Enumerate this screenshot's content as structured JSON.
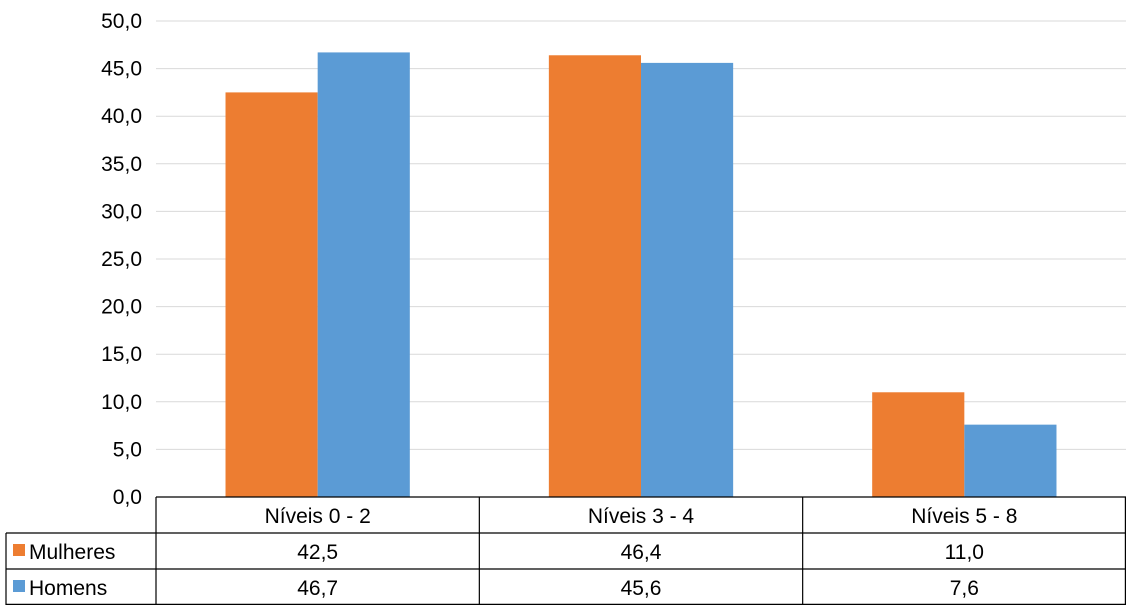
{
  "chart_data": {
    "type": "bar",
    "categories": [
      "Níveis 0 - 2",
      "Níveis 3 - 4",
      "Níveis 5 - 8"
    ],
    "series": [
      {
        "name": "Mulheres",
        "values": [
          42.5,
          46.4,
          11.0
        ],
        "color": "#ED7D31",
        "labels": [
          "42,5",
          "46,4",
          "11,0"
        ]
      },
      {
        "name": "Homens",
        "values": [
          46.7,
          45.6,
          7.6
        ],
        "color": "#5B9BD5",
        "labels": [
          "46,7",
          "45,6",
          "7,6"
        ]
      }
    ],
    "ylim": [
      0,
      50
    ],
    "yticks": [
      0,
      5,
      10,
      15,
      20,
      25,
      30,
      35,
      40,
      45,
      50
    ],
    "ytick_labels": [
      "0,0",
      "5,0",
      "10,0",
      "15,0",
      "20,0",
      "25,0",
      "30,0",
      "35,0",
      "40,0",
      "45,0",
      "50,0"
    ],
    "grid": true,
    "legend": "data-table",
    "title": "",
    "xlabel": "",
    "ylabel": ""
  }
}
